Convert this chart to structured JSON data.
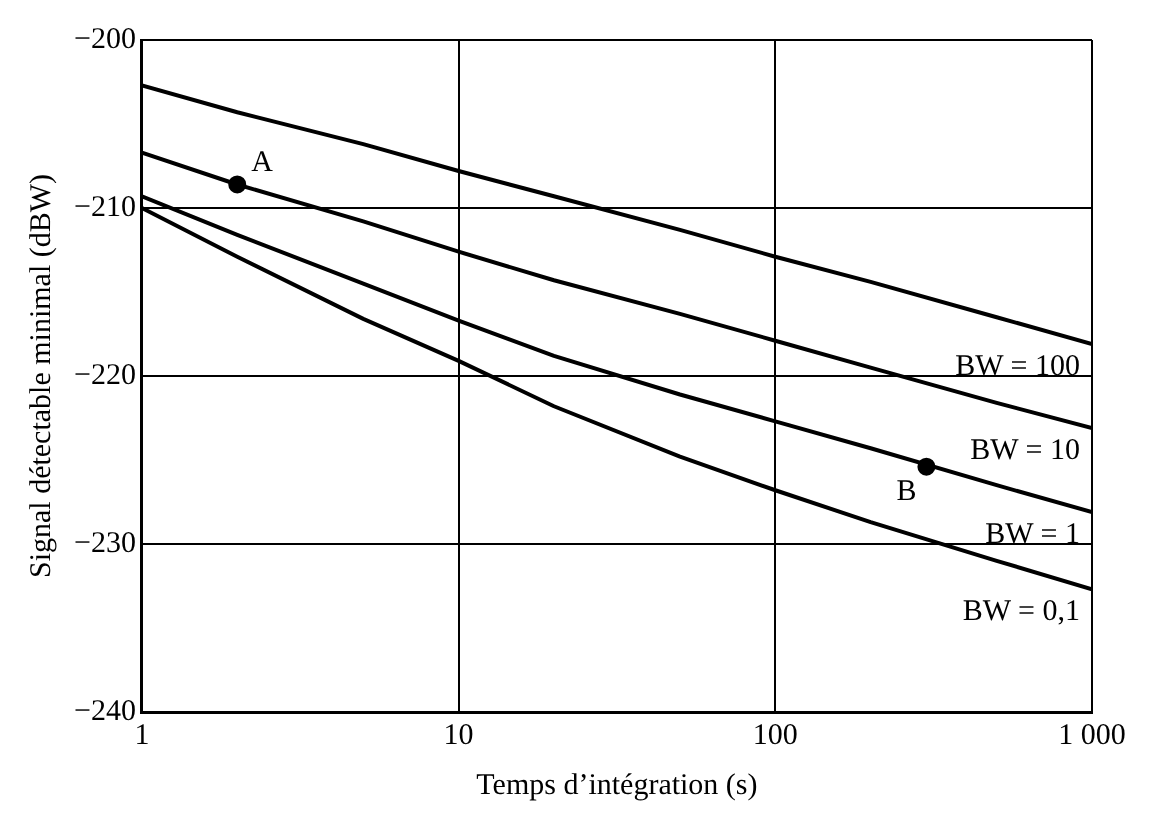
{
  "chart_data": {
    "type": "line",
    "xlabel": "Temps d’intégration (s)",
    "ylabel": "Signal détectable minimal (dBW)",
    "log": "x",
    "grid": true,
    "legend": false,
    "marker": "none",
    "line_style": "solid",
    "xlim": [
      1,
      1000
    ],
    "xticks": [
      1,
      10,
      100,
      {
        "value": 1000,
        "label": "1 000"
      }
    ],
    "ylim": [
      -240,
      -200
    ],
    "yticks": [
      -240,
      -230,
      -220,
      -210,
      -200
    ],
    "x": [
      1,
      2,
      5,
      10,
      20,
      50,
      100,
      200,
      500,
      1000
    ],
    "series": [
      {
        "name": "BW = 100",
        "color": "#000000",
        "values": [
          -202.7,
          -204.3,
          -206.2,
          -207.8,
          -209.3,
          -211.3,
          -212.9,
          -214.4,
          -216.5,
          -218.1
        ]
      },
      {
        "name": "BW = 10",
        "color": "#000000",
        "values": [
          -206.7,
          -208.6,
          -210.8,
          -212.6,
          -214.3,
          -216.3,
          -217.9,
          -219.5,
          -221.6,
          -223.1
        ]
      },
      {
        "name": "BW = 1",
        "color": "#000000",
        "values": [
          -209.3,
          -211.6,
          -214.5,
          -216.7,
          -218.8,
          -221.1,
          -222.7,
          -224.3,
          -226.5,
          -228.1
        ]
      },
      {
        "name": "BW = 0,1",
        "color": "#000000",
        "values": [
          -210,
          -212.9,
          -216.6,
          -219.1,
          -221.8,
          -224.8,
          -226.8,
          -228.7,
          -231.0,
          -232.7
        ]
      },
      {
        "type": "scatter",
        "marker": "circle",
        "color": "#000000",
        "x": [
          2,
          300
        ],
        "values": [
          -208.6,
          -225.4
        ]
      }
    ],
    "annotations": [
      {
        "text": "A",
        "x": 2,
        "y": -208.6
      },
      {
        "text": "B",
        "x": 300,
        "y": -225.4
      }
    ]
  }
}
